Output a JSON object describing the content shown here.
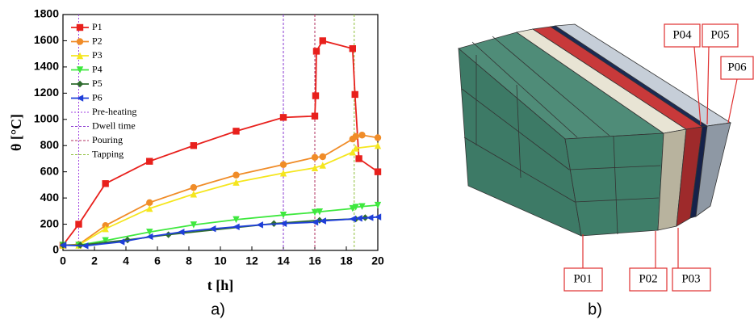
{
  "chart_data": {
    "type": "line",
    "xlabel": "t [h]",
    "ylabel": "θ [°C]",
    "xlim": [
      0,
      20
    ],
    "xticks": [
      0,
      2,
      4,
      6,
      8,
      10,
      12,
      14,
      16,
      18,
      20
    ],
    "ylim": [
      0,
      1800
    ],
    "yticks": [
      0,
      200,
      400,
      600,
      800,
      1000,
      1200,
      1400,
      1600,
      1800
    ],
    "series": [
      {
        "name": "P1",
        "color": "#e8201c",
        "marker": "square",
        "x": [
          0,
          1,
          2.7,
          5.5,
          8.3,
          11,
          14,
          16,
          16.05,
          16.1,
          16.5,
          18.4,
          18.55,
          18.8,
          20
        ],
        "values": [
          40,
          200,
          510,
          680,
          800,
          910,
          1015,
          1025,
          1180,
          1520,
          1600,
          1540,
          1190,
          700,
          600
        ]
      },
      {
        "name": "P2",
        "color": "#f08c28",
        "marker": "circle",
        "x": [
          0,
          1,
          2.7,
          5.5,
          8.3,
          11,
          14,
          16,
          16.5,
          18.4,
          18.6,
          19,
          20
        ],
        "values": [
          40,
          45,
          190,
          365,
          480,
          575,
          655,
          710,
          715,
          850,
          870,
          880,
          860
        ]
      },
      {
        "name": "P3",
        "color": "#f5e61e",
        "marker": "triangle-up",
        "x": [
          0,
          1,
          2.7,
          5.5,
          8.3,
          11,
          14,
          16,
          16.5,
          18.4,
          18.6,
          20
        ],
        "values": [
          40,
          40,
          165,
          320,
          430,
          520,
          590,
          630,
          650,
          750,
          780,
          800
        ]
      },
      {
        "name": "P4",
        "color": "#3ee83e",
        "marker": "triangle-down",
        "x": [
          0,
          1,
          2.7,
          5.5,
          8.3,
          11,
          14,
          16,
          16.3,
          18.4,
          18.6,
          19,
          20
        ],
        "values": [
          40,
          40,
          75,
          140,
          195,
          235,
          270,
          290,
          295,
          320,
          330,
          335,
          345
        ]
      },
      {
        "name": "P5",
        "color": "#2e6b2e",
        "marker": "diamond",
        "x": [
          0,
          1.1,
          4.1,
          6.7,
          13.4,
          16.3,
          18.6,
          19.2
        ],
        "values": [
          40,
          40,
          80,
          120,
          205,
          230,
          240,
          250
        ]
      },
      {
        "name": "P6",
        "color": "#1f3fd8",
        "marker": "triangle-left",
        "x": [
          0,
          1.4,
          3.7,
          5.5,
          7.5,
          9.5,
          11,
          12.5,
          14,
          16,
          16.5,
          18.4,
          18.8,
          19.5,
          20
        ],
        "values": [
          40,
          35,
          65,
          105,
          140,
          165,
          180,
          195,
          205,
          215,
          225,
          240,
          245,
          250,
          255
        ]
      }
    ],
    "vlines": [
      {
        "name": "Pre-heating",
        "x": 1,
        "color": "#a040e0"
      },
      {
        "name": "Dwell time",
        "x": 14,
        "color": "#8a3ad0"
      },
      {
        "name": "Pouring",
        "x": 16,
        "color": "#b03060"
      },
      {
        "name": "Tapping",
        "x": 18.5,
        "color": "#8fbf3a"
      }
    ]
  },
  "panel_labels": [
    "a)",
    "b)"
  ],
  "diagram": {
    "labels": [
      "P01",
      "P02",
      "P03",
      "P04",
      "P05",
      "P06"
    ]
  }
}
